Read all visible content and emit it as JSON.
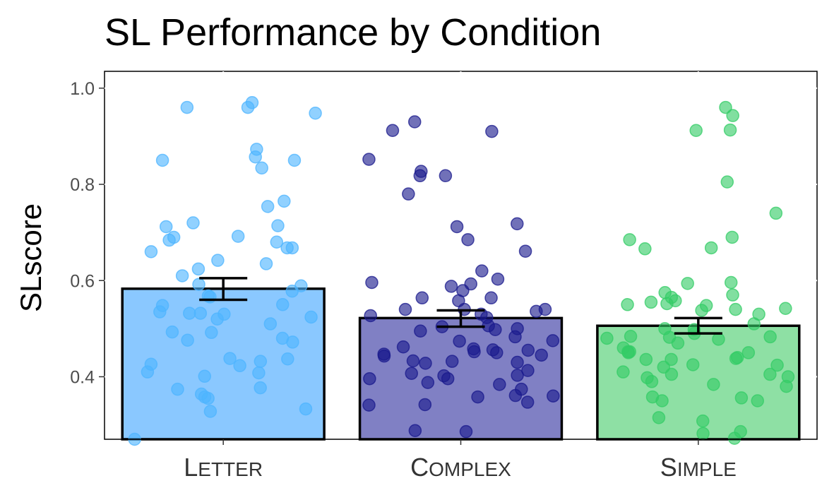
{
  "chart_data": {
    "type": "bar",
    "title": "SL Performance by Condition",
    "xlabel": "",
    "ylabel": "SLscore",
    "ylim": [
      0.27,
      1.035
    ],
    "yticks": [
      "0.4",
      "0.6",
      "0.8",
      "1.0"
    ],
    "ytick_values": [
      0.4,
      0.6,
      0.8,
      1.0
    ],
    "grid": false,
    "legend": "none",
    "categories": [
      "Letter",
      "Complex",
      "Simple"
    ],
    "category_labels": [
      {
        "cap": "L",
        "rest": "ETTER"
      },
      {
        "cap": "C",
        "rest": "OMPLEX"
      },
      {
        "cap": "S",
        "rest": "IMPLE"
      }
    ],
    "values": [
      0.583,
      0.522,
      0.506
    ],
    "error": [
      {
        "low": 0.56,
        "high": 0.605
      },
      {
        "low": 0.504,
        "high": 0.538
      },
      {
        "low": 0.49,
        "high": 0.522
      }
    ],
    "colors": {
      "bar_fill": [
        "#8ac8ff",
        "#8080c4",
        "#8ee0a4"
      ],
      "point": [
        "#4db4ff",
        "#1a1a8c",
        "#33cc66"
      ],
      "outline": "#000000"
    },
    "points": [
      {
        "category": "Letter",
        "values": [
          0.97,
          0.96,
          0.96,
          0.948,
          0.873,
          0.857,
          0.85,
          0.85,
          0.834,
          0.765,
          0.754,
          0.72,
          0.714,
          0.712,
          0.692,
          0.69,
          0.684,
          0.68,
          0.668,
          0.668,
          0.66,
          0.642,
          0.635,
          0.624,
          0.61,
          0.592,
          0.589,
          0.578,
          0.568,
          0.566,
          0.55,
          0.548,
          0.535,
          0.532,
          0.532,
          0.53,
          0.524,
          0.52,
          0.51,
          0.493,
          0.492,
          0.472,
          0.48,
          0.476,
          0.438,
          0.437,
          0.432,
          0.426,
          0.423,
          0.41,
          0.408,
          0.401,
          0.377,
          0.374,
          0.364,
          0.358,
          0.355,
          0.333,
          0.328,
          0.27
        ]
      },
      {
        "category": "Complex",
        "values": [
          0.93,
          0.912,
          0.91,
          0.852,
          0.827,
          0.818,
          0.818,
          0.78,
          0.718,
          0.712,
          0.685,
          0.661,
          0.62,
          0.603,
          0.596,
          0.593,
          0.588,
          0.579,
          0.564,
          0.564,
          0.558,
          0.54,
          0.54,
          0.54,
          0.536,
          0.53,
          0.527,
          0.523,
          0.506,
          0.504,
          0.5,
          0.498,
          0.495,
          0.483,
          0.475,
          0.474,
          0.462,
          0.458,
          0.456,
          0.455,
          0.452,
          0.45,
          0.447,
          0.445,
          0.443,
          0.433,
          0.432,
          0.43,
          0.428,
          0.413,
          0.407,
          0.403,
          0.402,
          0.396,
          0.396,
          0.388,
          0.384,
          0.374,
          0.361,
          0.36,
          0.358,
          0.347,
          0.342,
          0.341,
          0.288,
          0.286
        ]
      },
      {
        "category": "Simple",
        "values": [
          0.96,
          0.943,
          0.913,
          0.912,
          0.805,
          0.74,
          0.69,
          0.685,
          0.668,
          0.666,
          0.596,
          0.594,
          0.575,
          0.57,
          0.565,
          0.558,
          0.555,
          0.552,
          0.55,
          0.548,
          0.542,
          0.54,
          0.538,
          0.53,
          0.51,
          0.5,
          0.498,
          0.49,
          0.484,
          0.483,
          0.482,
          0.48,
          0.478,
          0.47,
          0.46,
          0.452,
          0.452,
          0.45,
          0.45,
          0.44,
          0.438,
          0.436,
          0.436,
          0.425,
          0.424,
          0.42,
          0.41,
          0.405,
          0.405,
          0.4,
          0.398,
          0.39,
          0.384,
          0.38,
          0.358,
          0.356,
          0.35,
          0.35,
          0.315,
          0.308,
          0.286,
          0.282,
          0.272
        ]
      }
    ]
  }
}
